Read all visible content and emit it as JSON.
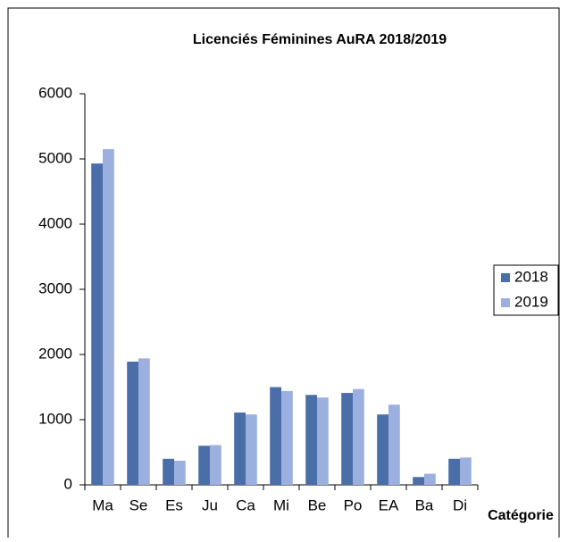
{
  "chart_data": {
    "type": "bar",
    "title": "Licenciés Féminines AuRA 2018/2019",
    "x_label": "Catégorie",
    "categories": [
      "Ma",
      "Se",
      "Es",
      "Ju",
      "Ca",
      "Mi",
      "Be",
      "Po",
      "EA",
      "Ba",
      "Di"
    ],
    "series": [
      {
        "name": "2018",
        "color": "#4a6fa8",
        "values": [
          4930,
          1890,
          400,
          600,
          1110,
          1500,
          1380,
          1410,
          1080,
          120,
          400
        ]
      },
      {
        "name": "2019",
        "color": "#9cb0e0",
        "values": [
          5150,
          1940,
          370,
          610,
          1080,
          1440,
          1340,
          1470,
          1230,
          170,
          420
        ]
      }
    ],
    "ylim": [
      0,
      6000
    ],
    "yticks": [
      0,
      1000,
      2000,
      3000,
      4000,
      5000,
      6000
    ],
    "legend": "right"
  }
}
